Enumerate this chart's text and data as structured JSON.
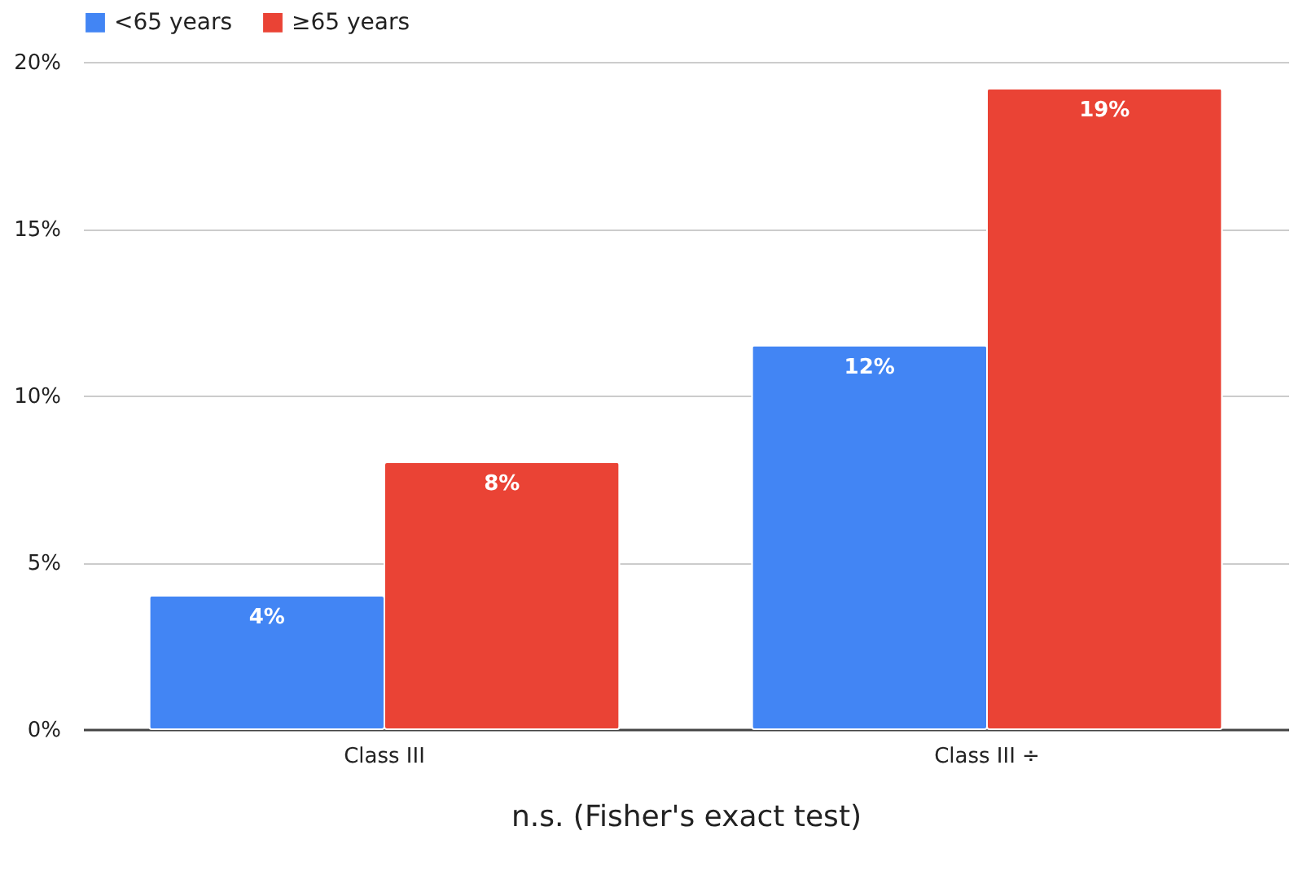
{
  "chart_data": {
    "type": "bar",
    "xlabel": "n.s. (Fisher's exact test)",
    "categories": [
      "Class III",
      "Class III ÷"
    ],
    "series": [
      {
        "name": "<65 years",
        "color": "#4285f4",
        "values": [
          4,
          11.5
        ],
        "value_labels": [
          "4%",
          "12%"
        ]
      },
      {
        "name": "≥65 years",
        "color": "#ea4335",
        "values": [
          8,
          19.2
        ],
        "value_labels": [
          "8%",
          "19%"
        ]
      }
    ],
    "ylim": [
      0,
      20
    ],
    "yticks": [
      {
        "value": 0,
        "label": "0%"
      },
      {
        "value": 5,
        "label": "5%"
      },
      {
        "value": 10,
        "label": "10%"
      },
      {
        "value": 15,
        "label": "15%"
      },
      {
        "value": 20,
        "label": "20%"
      }
    ],
    "grid": "y",
    "legend": "top"
  }
}
